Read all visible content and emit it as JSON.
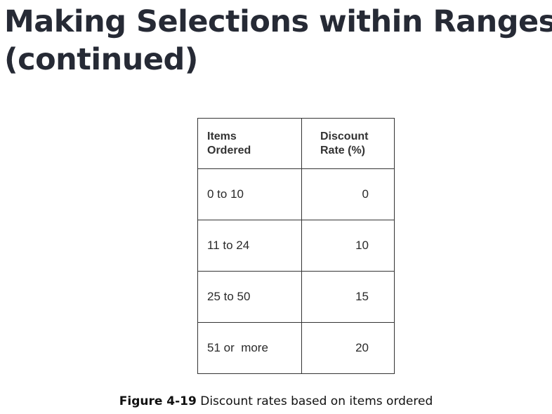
{
  "slide": {
    "title_line1": "Making Selections within Ranges",
    "title_line2": "(continued)"
  },
  "table": {
    "headers": {
      "items": [
        "Items",
        "Ordered"
      ],
      "rate": [
        "Discount",
        "Rate (%)"
      ]
    },
    "rows": [
      {
        "items": "0 to 10",
        "rate": "0"
      },
      {
        "items": "11 to 24",
        "rate": "10"
      },
      {
        "items": "25 to 50",
        "rate": "15"
      },
      {
        "items": "51 or  more",
        "rate": "20"
      }
    ]
  },
  "caption": {
    "label": "Figure 4-19",
    "text": " Discount rates based on items ordered"
  }
}
